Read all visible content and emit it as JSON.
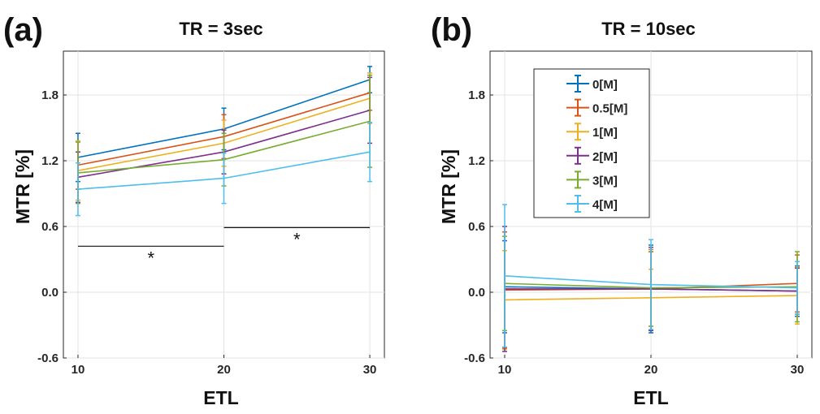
{
  "colors": [
    "#0072BD",
    "#D95319",
    "#EDB120",
    "#7E2F8E",
    "#77AC30",
    "#4DBEEE"
  ],
  "chart_data": [
    {
      "type": "line",
      "panel_label": "(a)",
      "title": "TR = 3sec",
      "xlabel": "ETL",
      "ylabel": "MTR [%]",
      "x": [
        10,
        20,
        30
      ],
      "xlim": [
        9,
        31
      ],
      "ylim": [
        -0.6,
        2.2
      ],
      "xticks": [
        "10",
        "20",
        "30"
      ],
      "yticks": [
        "-0.6",
        "0.0",
        "0.6",
        "1.2",
        "1.8"
      ],
      "grid": true,
      "series": [
        {
          "name": "0[M]",
          "values": [
            1.23,
            1.49,
            1.94
          ],
          "errors": [
            0.22,
            0.19,
            0.12
          ]
        },
        {
          "name": "0.5[M]",
          "values": [
            1.16,
            1.42,
            1.82
          ],
          "errors": [
            0.22,
            0.2,
            0.16
          ]
        },
        {
          "name": "1[M]",
          "values": [
            1.11,
            1.36,
            1.77
          ],
          "errors": [
            0.27,
            0.21,
            0.23
          ]
        },
        {
          "name": "2[M]",
          "values": [
            1.05,
            1.28,
            1.66
          ],
          "errors": [
            0.23,
            0.2,
            0.3
          ]
        },
        {
          "name": "3[M]",
          "values": [
            1.09,
            1.21,
            1.56
          ],
          "errors": [
            0.28,
            0.24,
            0.42
          ]
        },
        {
          "name": "4[M]",
          "values": [
            0.94,
            1.04,
            1.28
          ],
          "errors": [
            0.24,
            0.23,
            0.27
          ]
        }
      ],
      "annotations": [
        {
          "text": "*",
          "from": 10,
          "to": 20,
          "y": 0.42
        },
        {
          "text": "*",
          "from": 20,
          "to": 30,
          "y": 0.59
        }
      ]
    },
    {
      "type": "line",
      "panel_label": "(b)",
      "title": "TR = 10sec",
      "xlabel": "ETL",
      "ylabel": "MTR [%]",
      "x": [
        10,
        20,
        30
      ],
      "xlim": [
        9,
        31
      ],
      "ylim": [
        -0.6,
        2.2
      ],
      "xticks": [
        "10",
        "20",
        "30"
      ],
      "yticks": [
        "-0.6",
        "0.0",
        "0.6",
        "1.2",
        "1.8"
      ],
      "grid": true,
      "legend": "top-left",
      "series": [
        {
          "name": "0[M]",
          "values": [
            0.05,
            0.03,
            0.01
          ],
          "errors": [
            0.42,
            0.4,
            0.23
          ]
        },
        {
          "name": "0.5[M]",
          "values": [
            0.02,
            0.03,
            0.08
          ],
          "errors": [
            0.53,
            0.34,
            0.26
          ]
        },
        {
          "name": "1[M]",
          "values": [
            -0.07,
            -0.05,
            -0.03
          ],
          "errors": [
            0.45,
            0.26,
            0.26
          ]
        },
        {
          "name": "2[M]",
          "values": [
            0.03,
            0.03,
            0.01
          ],
          "errors": [
            0.57,
            0.38,
            0.21
          ]
        },
        {
          "name": "3[M]",
          "values": [
            0.08,
            0.04,
            0.05
          ],
          "errors": [
            0.43,
            0.35,
            0.32
          ]
        },
        {
          "name": "4[M]",
          "values": [
            0.15,
            0.07,
            0.04
          ],
          "errors": [
            0.65,
            0.41,
            0.24
          ]
        }
      ]
    }
  ]
}
